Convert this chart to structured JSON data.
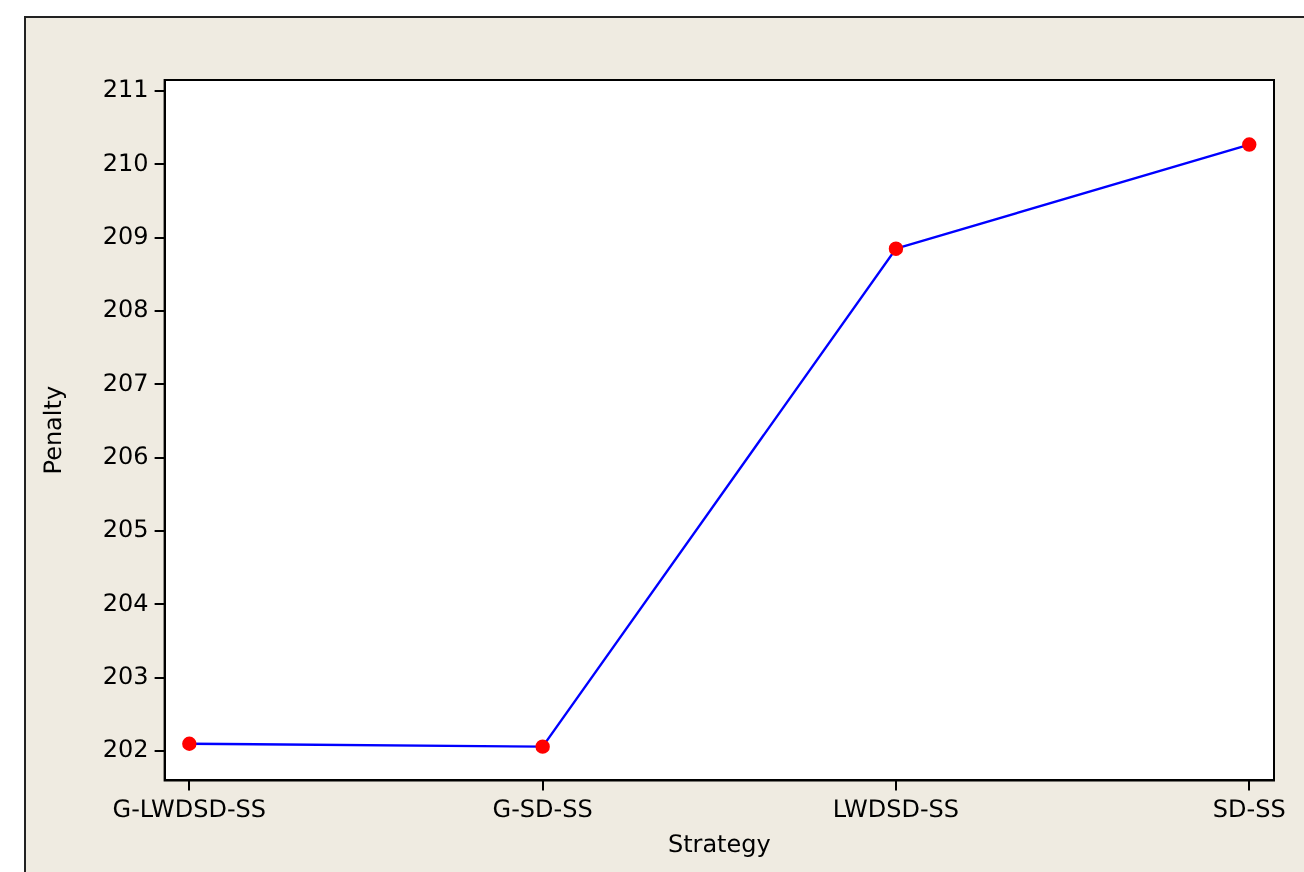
{
  "chart_data": {
    "type": "line",
    "xlabel": "Strategy",
    "ylabel": "Penalty",
    "categories": [
      "G-LWDSD-SS",
      "G-SD-SS",
      "LWDSD-SS",
      "SD-SS"
    ],
    "series": [
      {
        "color": "#0000ff",
        "colors": [
          "#ff0000",
          "#ff0000",
          "#ff0000",
          "#ff0000"
        ],
        "values": [
          202.1,
          202.06,
          208.85,
          210.27
        ]
      }
    ],
    "ylim": [
      201.6,
      211.15
    ],
    "yticks": [
      202,
      203,
      204,
      205,
      206,
      207,
      208,
      209,
      210,
      211
    ],
    "grid": false,
    "legend": false,
    "marker": "circle",
    "line_style": "solid"
  }
}
